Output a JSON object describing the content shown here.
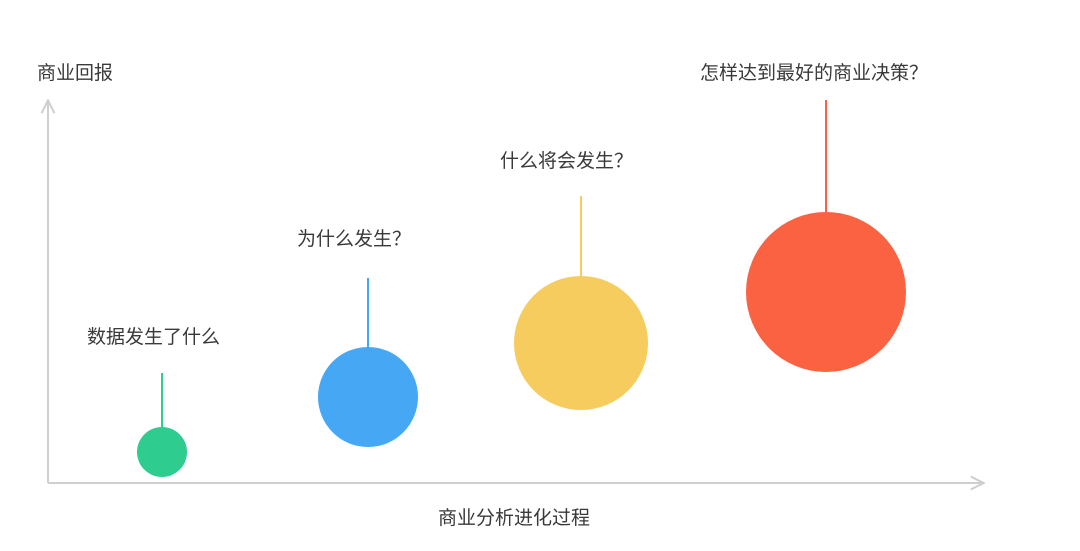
{
  "y_axis_label": "商业回报",
  "x_axis_label": "商业分析进化过程",
  "stages": [
    {
      "label": "数据发生了什么",
      "color": "#2ecc8e"
    },
    {
      "label": "为什么发生？",
      "color": "#46a8f5"
    },
    {
      "label": "什么将会发生？",
      "color": "#f7cc5f"
    },
    {
      "label": "怎样达到最好的商业决策？",
      "color": "#fb6242"
    }
  ],
  "axis_color": "#cfcfcf"
}
